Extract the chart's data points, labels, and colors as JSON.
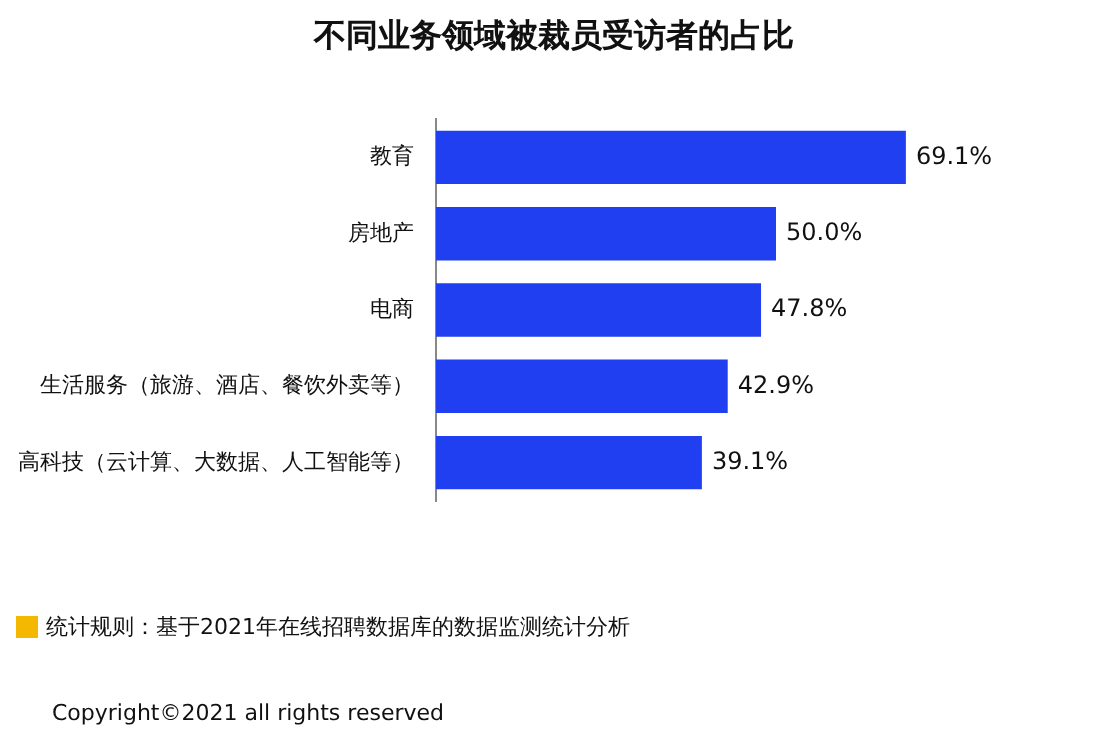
{
  "chart_data": {
    "type": "bar",
    "orientation": "horizontal",
    "title": "不同业务领域被裁员受访者的占比",
    "categories": [
      "教育",
      "房地产",
      "电商",
      "生活服务（旅游、酒店、餐饮外卖等）",
      "高科技（云计算、大数据、人工智能等）"
    ],
    "values": [
      69.1,
      50.0,
      47.8,
      42.9,
      39.1
    ],
    "color": "#1f3ff0",
    "value_labels": [
      "69.1%",
      "50.0%",
      "47.8%",
      "42.9%",
      "39.1%"
    ],
    "tick_labels": "y",
    "annotations": [
      "统计规则：基于2021年在线招聘数据库的数据监测统计分析",
      "Copyright©2021 all rights reserved"
    ]
  }
}
